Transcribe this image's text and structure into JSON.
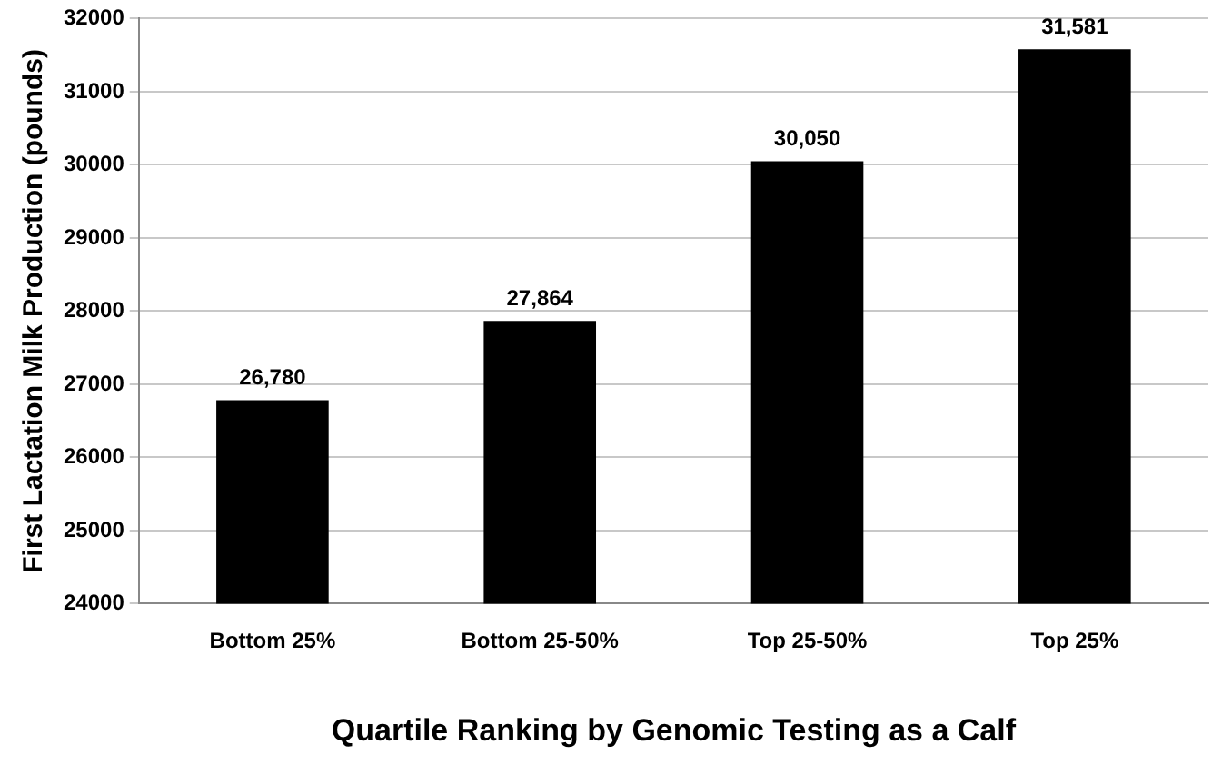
{
  "chart_data": {
    "type": "bar",
    "xlabel": "Quartile Ranking by Genomic Testing as a Calf",
    "ylabel": "First Lactation Milk Production (pounds)",
    "categories": [
      "Bottom 25%",
      "Bottom 25-50%",
      "Top 25-50%",
      "Top 25%"
    ],
    "values": [
      26780,
      27864,
      30050,
      31581
    ],
    "value_labels": [
      "26,780",
      "27,864",
      "30,050",
      "31,581"
    ],
    "color": "#000000",
    "ylim": [
      24000,
      32000
    ],
    "yticks": [
      24000,
      25000,
      26000,
      27000,
      28000,
      29000,
      30000,
      31000,
      32000
    ],
    "grid": "y"
  }
}
